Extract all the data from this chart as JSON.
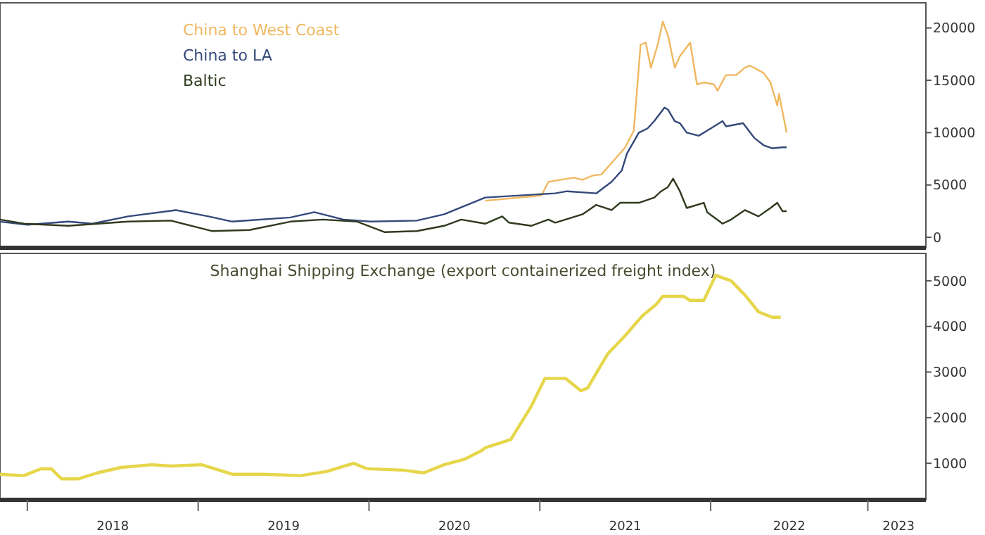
{
  "chart_data": [
    {
      "type": "line",
      "legend": "top left",
      "tick_labels": "y",
      "xlim": [
        2017.84,
        2023.26
      ],
      "ylim": [
        -1000,
        22400
      ],
      "yticks": [
        0,
        5000,
        10000,
        15000,
        20000
      ],
      "grid": false,
      "series": [
        {
          "name": "China to West Coast",
          "color": "#f0b860",
          "x": [
            2020.68,
            2021.01,
            2021.05,
            2021.12,
            2021.2,
            2021.25,
            2021.31,
            2021.36,
            2021.42,
            2021.5,
            2021.55,
            2021.59,
            2021.62,
            2021.65,
            2021.69,
            2021.72,
            2021.75,
            2021.79,
            2021.82,
            2021.88,
            2021.92,
            2021.96,
            2022.02,
            2022.04,
            2022.09,
            2022.15,
            2022.2,
            2022.23,
            2022.31,
            2022.35,
            2022.39,
            2022.4,
            2022.445
          ],
          "values": [
            3500,
            4000,
            5300,
            5500,
            5700,
            5500,
            5900,
            6000,
            7100,
            8600,
            10200,
            18400,
            18600,
            16200,
            18400,
            20600,
            19300,
            16200,
            17300,
            18600,
            14600,
            14800,
            14600,
            14000,
            15500,
            15500,
            16200,
            16400,
            15700,
            14800,
            12600,
            13700,
            10000
          ]
        },
        {
          "name": "China to LA",
          "color": "#34497a",
          "x": [
            2017.84,
            2018.0,
            2018.24,
            2018.38,
            2018.59,
            2018.87,
            2019.06,
            2019.2,
            2019.54,
            2019.68,
            2019.85,
            2020.01,
            2020.28,
            2020.44,
            2020.68,
            2021.09,
            2021.16,
            2021.33,
            2021.42,
            2021.48,
            2021.51,
            2021.58,
            2021.63,
            2021.67,
            2021.73,
            2021.75,
            2021.79,
            2021.82,
            2021.86,
            2021.93,
            2021.98,
            2022.07,
            2022.09,
            2022.19,
            2022.255,
            2022.31,
            2022.36,
            2022.42,
            2022.445
          ],
          "values": [
            1500,
            1200,
            1500,
            1300,
            2000,
            2600,
            2000,
            1500,
            1900,
            2400,
            1700,
            1500,
            1600,
            2200,
            3800,
            4200,
            4400,
            4200,
            5300,
            6400,
            8000,
            10000,
            10400,
            11100,
            12400,
            12200,
            11100,
            10900,
            10000,
            9700,
            10200,
            11100,
            10600,
            10900,
            9500,
            8800,
            8500,
            8600,
            8600
          ]
        },
        {
          "name": "Baltic",
          "color": "#2f3a1f",
          "x": [
            2017.84,
            2017.98,
            2018.24,
            2018.59,
            2018.84,
            2019.08,
            2019.3,
            2019.54,
            2019.73,
            2019.93,
            2020.09,
            2020.28,
            2020.44,
            2020.54,
            2020.68,
            2020.78,
            2020.82,
            2020.95,
            2021.05,
            2021.09,
            2021.25,
            2021.33,
            2021.42,
            2021.47,
            2021.58,
            2021.67,
            2021.71,
            2021.75,
            2021.78,
            2021.82,
            2021.86,
            2021.96,
            2021.98,
            2022.07,
            2022.12,
            2022.2,
            2022.28,
            2022.35,
            2022.39,
            2022.42,
            2022.445
          ],
          "values": [
            1700,
            1300,
            1100,
            1500,
            1600,
            600,
            700,
            1500,
            1700,
            1500,
            500,
            600,
            1100,
            1700,
            1300,
            2000,
            1400,
            1100,
            1700,
            1400,
            2200,
            3100,
            2600,
            3300,
            3300,
            3800,
            4400,
            4800,
            5600,
            4400,
            2800,
            3300,
            2400,
            1300,
            1700,
            2600,
            2000,
            2800,
            3300,
            2500,
            2500
          ]
        }
      ]
    },
    {
      "type": "line",
      "title": "Shanghai Shipping Exchange (export containerized freight index)",
      "xlim": [
        2017.84,
        2023.26
      ],
      "xticks": [
        {
          "value": 2018,
          "label": null
        },
        {
          "value": 2018.5,
          "label": "2018"
        },
        {
          "value": 2019,
          "label": null
        },
        {
          "value": 2019.5,
          "label": "2019"
        },
        {
          "value": 2020,
          "label": null
        },
        {
          "value": 2020.5,
          "label": "2020"
        },
        {
          "value": 2021,
          "label": null
        },
        {
          "value": 2021.5,
          "label": "2021"
        },
        {
          "value": 2022,
          "label": null
        },
        {
          "value": 2022.46,
          "label": "2022"
        },
        {
          "value": 2022.92,
          "label": null
        },
        {
          "value": 2023.1,
          "label": "2023"
        }
      ],
      "ylim": [
        200,
        5600
      ],
      "yticks": [
        1000,
        2000,
        3000,
        4000,
        5000
      ],
      "grid": false,
      "series": [
        {
          "color": "#e6d64a",
          "x": [
            2017.84,
            2017.98,
            2018.08,
            2018.14,
            2018.2,
            2018.3,
            2018.41,
            2018.55,
            2018.73,
            2018.84,
            2019.02,
            2019.2,
            2019.38,
            2019.6,
            2019.75,
            2019.91,
            2019.99,
            2020.2,
            2020.32,
            2020.44,
            2020.56,
            2020.66,
            2020.68,
            2020.83,
            2020.95,
            2021.03,
            2021.15,
            2021.24,
            2021.28,
            2021.35,
            2021.4,
            2021.5,
            2021.6,
            2021.68,
            2021.72,
            2021.84,
            2021.88,
            2021.96,
            2022.03,
            2022.12,
            2022.2,
            2022.28,
            2022.36,
            2022.41
          ],
          "values": [
            760,
            730,
            880,
            880,
            660,
            660,
            790,
            910,
            970,
            940,
            970,
            760,
            760,
            730,
            820,
            1000,
            880,
            850,
            790,
            970,
            1090,
            1280,
            1340,
            1520,
            2250,
            2860,
            2860,
            2590,
            2650,
            3100,
            3410,
            3800,
            4230,
            4480,
            4660,
            4660,
            4570,
            4570,
            5120,
            5000,
            4690,
            4320,
            4200,
            4200
          ]
        }
      ]
    }
  ]
}
